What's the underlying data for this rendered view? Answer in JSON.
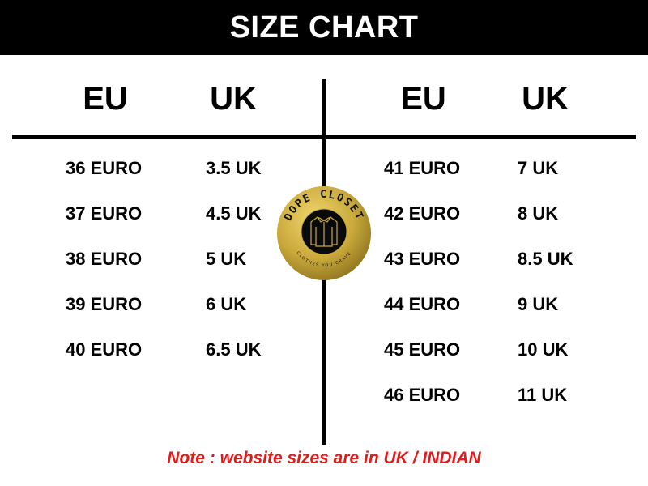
{
  "title": "SIZE CHART",
  "left": {
    "headers": [
      "EU",
      "UK"
    ],
    "rows": [
      [
        "36 EURO",
        "3.5 UK"
      ],
      [
        "37 EURO",
        "4.5 UK"
      ],
      [
        "38 EURO",
        "5 UK"
      ],
      [
        "39 EURO",
        "6 UK"
      ],
      [
        "40 EURO",
        "6.5 UK"
      ]
    ]
  },
  "right": {
    "headers": [
      "EU",
      "UK"
    ],
    "rows": [
      [
        "41 EURO",
        "7 UK"
      ],
      [
        "42 EURO",
        "8 UK"
      ],
      [
        "43 EURO",
        "8.5 UK"
      ],
      [
        "44 EURO",
        "9 UK"
      ],
      [
        "45 EURO",
        "10 UK"
      ],
      [
        "46 EURO",
        "11 UK"
      ]
    ]
  },
  "logo": {
    "name": "DOPE CLOSET",
    "tagline": "CLOTHES YOU CRAVE",
    "icon": "shirt-icon",
    "color": "#c9a93a"
  },
  "note": "Note : website sizes are in UK / INDIAN",
  "colors": {
    "header_bg": "#000000",
    "note": "#e21a1a"
  }
}
